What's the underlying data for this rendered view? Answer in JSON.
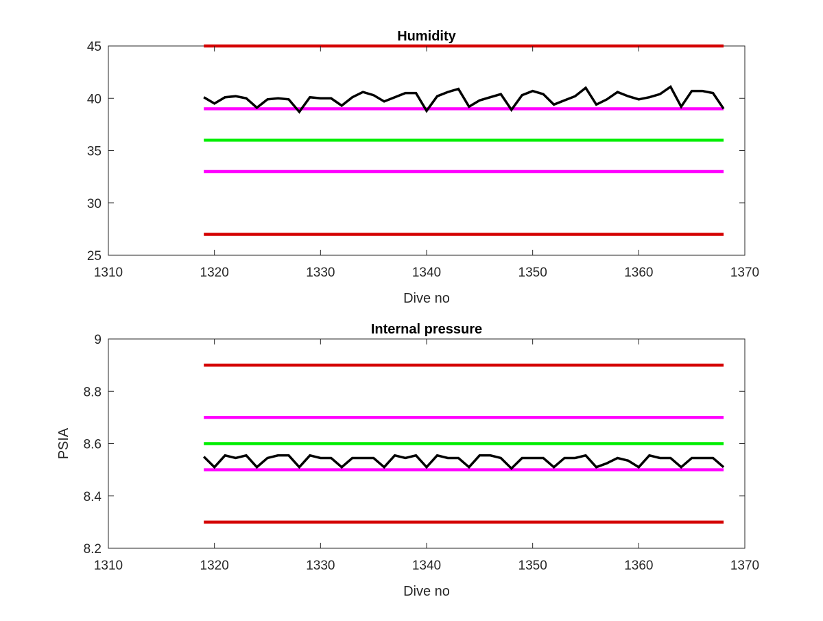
{
  "chart_data": [
    {
      "type": "line",
      "title": "Humidity",
      "xlabel": "Dive no",
      "ylabel": "",
      "xlim": [
        1310,
        1370
      ],
      "ylim": [
        25,
        45
      ],
      "xticks": [
        1310,
        1320,
        1330,
        1340,
        1350,
        1360,
        1370
      ],
      "yticks": [
        25,
        30,
        35,
        40,
        45
      ],
      "grid": false,
      "x_range_of_series": [
        1319,
        1368
      ],
      "reference_lines": [
        {
          "y": 45,
          "color": "#d40000",
          "x": [
            1319,
            1368
          ]
        },
        {
          "y": 39,
          "color": "#ff00ff",
          "x": [
            1319,
            1368
          ]
        },
        {
          "y": 36,
          "color": "#00ee00",
          "x": [
            1319,
            1368
          ]
        },
        {
          "y": 33,
          "color": "#ff00ff",
          "x": [
            1319,
            1368
          ]
        },
        {
          "y": 27,
          "color": "#d40000",
          "x": [
            1319,
            1368
          ]
        }
      ],
      "series": [
        {
          "color": "#000000",
          "x": [
            1319,
            1320,
            1321,
            1322,
            1323,
            1324,
            1325,
            1326,
            1327,
            1328,
            1329,
            1330,
            1331,
            1332,
            1333,
            1334,
            1335,
            1336,
            1337,
            1338,
            1339,
            1340,
            1341,
            1342,
            1343,
            1344,
            1345,
            1346,
            1347,
            1348,
            1349,
            1350,
            1351,
            1352,
            1353,
            1354,
            1355,
            1356,
            1357,
            1358,
            1359,
            1360,
            1361,
            1362,
            1363,
            1364,
            1365,
            1366,
            1367,
            1368
          ],
          "y": [
            40.1,
            39.5,
            40.1,
            40.2,
            40.0,
            39.1,
            39.9,
            40.0,
            39.9,
            38.7,
            40.1,
            40.0,
            40.0,
            39.3,
            40.1,
            40.6,
            40.3,
            39.7,
            40.1,
            40.5,
            40.5,
            38.8,
            40.2,
            40.6,
            40.9,
            39.2,
            39.8,
            40.1,
            40.4,
            38.9,
            40.3,
            40.7,
            40.4,
            39.4,
            39.8,
            40.2,
            41.0,
            39.4,
            39.9,
            40.6,
            40.2,
            39.9,
            40.1,
            40.4,
            41.1,
            39.2,
            40.7,
            40.7,
            40.5,
            39.0
          ]
        }
      ]
    },
    {
      "type": "line",
      "title": "Internal pressure",
      "xlabel": "Dive no",
      "ylabel": "PSIA",
      "xlim": [
        1310,
        1370
      ],
      "ylim": [
        8.2,
        9
      ],
      "xticks": [
        1310,
        1320,
        1330,
        1340,
        1350,
        1360,
        1370
      ],
      "yticks": [
        8.2,
        8.4,
        8.6,
        8.8,
        9
      ],
      "grid": false,
      "x_range_of_series": [
        1319,
        1368
      ],
      "reference_lines": [
        {
          "y": 8.9,
          "color": "#d40000",
          "x": [
            1319,
            1368
          ]
        },
        {
          "y": 8.7,
          "color": "#ff00ff",
          "x": [
            1319,
            1368
          ]
        },
        {
          "y": 8.6,
          "color": "#00ee00",
          "x": [
            1319,
            1368
          ]
        },
        {
          "y": 8.5,
          "color": "#ff00ff",
          "x": [
            1319,
            1368
          ]
        },
        {
          "y": 8.3,
          "color": "#d40000",
          "x": [
            1319,
            1368
          ]
        }
      ],
      "series": [
        {
          "color": "#000000",
          "x": [
            1319,
            1320,
            1321,
            1322,
            1323,
            1324,
            1325,
            1326,
            1327,
            1328,
            1329,
            1330,
            1331,
            1332,
            1333,
            1334,
            1335,
            1336,
            1337,
            1338,
            1339,
            1340,
            1341,
            1342,
            1343,
            1344,
            1345,
            1346,
            1347,
            1348,
            1349,
            1350,
            1351,
            1352,
            1353,
            1354,
            1355,
            1356,
            1357,
            1358,
            1359,
            1360,
            1361,
            1362,
            1363,
            1364,
            1365,
            1366,
            1367,
            1368
          ],
          "y": [
            8.55,
            8.51,
            8.555,
            8.545,
            8.555,
            8.51,
            8.545,
            8.555,
            8.555,
            8.51,
            8.555,
            8.545,
            8.545,
            8.51,
            8.545,
            8.545,
            8.545,
            8.51,
            8.555,
            8.545,
            8.555,
            8.51,
            8.555,
            8.545,
            8.545,
            8.51,
            8.555,
            8.555,
            8.545,
            8.505,
            8.545,
            8.545,
            8.545,
            8.51,
            8.545,
            8.545,
            8.555,
            8.51,
            8.525,
            8.545,
            8.535,
            8.51,
            8.555,
            8.545,
            8.545,
            8.51,
            8.545,
            8.545,
            8.545,
            8.51
          ]
        }
      ]
    }
  ]
}
